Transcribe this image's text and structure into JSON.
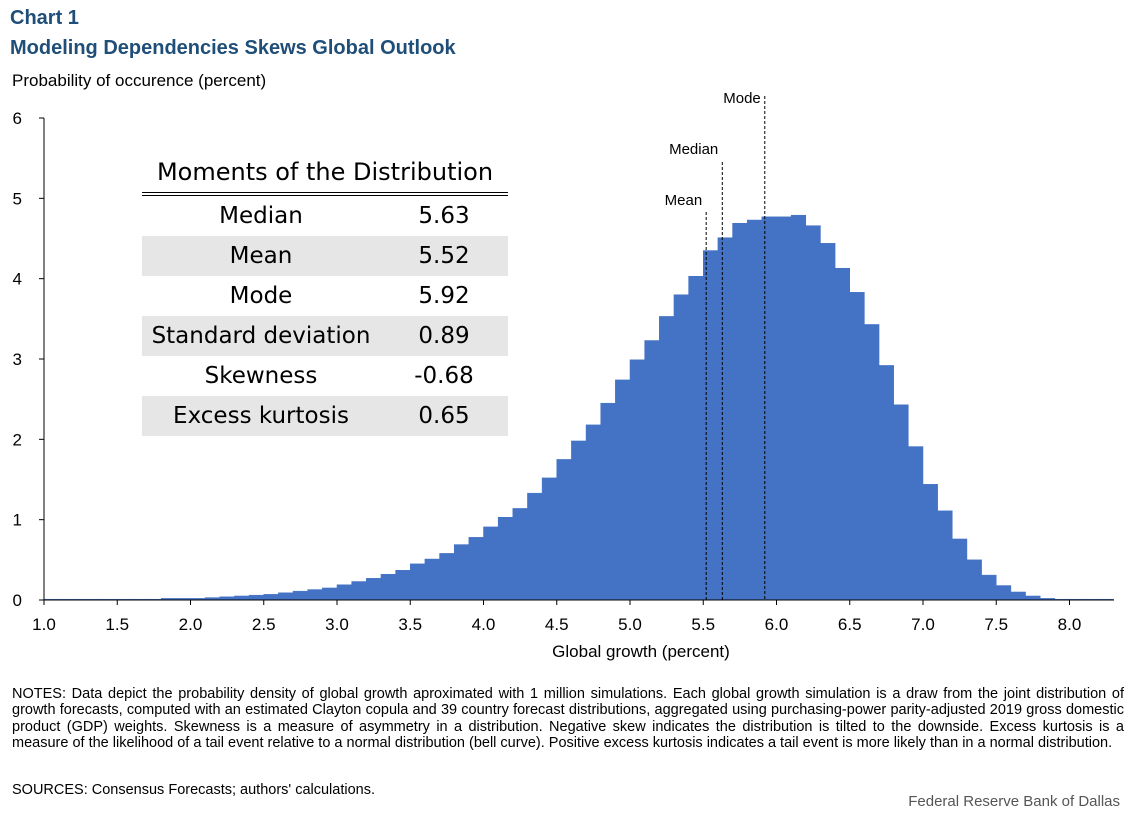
{
  "header": {
    "chart_number": "Chart 1",
    "title": "Modeling Dependencies Skews Global Outlook"
  },
  "footer": {
    "notes": "NOTES: Data depict the probability density of global growth aproximated with 1 million simulations. Each global growth simulation is a draw from the joint distribution of growth forecasts, computed with an estimated Clayton copula and 39 country forecast distributions, aggregated using purchasing-power parity-adjusted 2019 gross domestic product (GDP) weights. Skewness is a measure of asymmetry in a distribution. Negative skew indicates the distribution is tilted to the downside. Excess kurtosis is a measure of the likelihood of a tail event relative to a normal distribution (bell curve). Positive excess kurtosis indicates a tail event is more likely than in a normal distribution.",
    "sources": "SOURCES: Consensus Forecasts; authors' calculations.",
    "credit": "Federal Reserve Bank of Dallas"
  },
  "moments_table": {
    "title": "Moments of the Distribution",
    "rows": [
      {
        "label": "Median",
        "value": "5.63"
      },
      {
        "label": "Mean",
        "value": "5.52"
      },
      {
        "label": "Mode",
        "value": "5.92"
      },
      {
        "label": "Standard deviation",
        "value": "0.89"
      },
      {
        "label": "Skewness",
        "value": "-0.68"
      },
      {
        "label": "Excess kurtosis",
        "value": "0.65"
      }
    ]
  },
  "chart_data": {
    "type": "bar",
    "ylabel": "Probability of occurence (percent)",
    "xlabel": "Global growth (percent)",
    "ylim": [
      0,
      6
    ],
    "xlim": [
      1.0,
      8.3
    ],
    "y_ticks": [
      0,
      1,
      2,
      3,
      4,
      5,
      6
    ],
    "x_ticks": [
      "1.0",
      "1.5",
      "2.0",
      "2.5",
      "3.0",
      "3.5",
      "4.0",
      "4.5",
      "5.0",
      "5.5",
      "6.0",
      "6.5",
      "7.0",
      "7.5",
      "8.0"
    ],
    "bin_width": 0.1,
    "bins": [
      {
        "x": 1.0,
        "y": 0.01
      },
      {
        "x": 1.1,
        "y": 0.01
      },
      {
        "x": 1.2,
        "y": 0.01
      },
      {
        "x": 1.3,
        "y": 0.01
      },
      {
        "x": 1.4,
        "y": 0.01
      },
      {
        "x": 1.5,
        "y": 0.01
      },
      {
        "x": 1.6,
        "y": 0.01
      },
      {
        "x": 1.7,
        "y": 0.01
      },
      {
        "x": 1.8,
        "y": 0.02
      },
      {
        "x": 1.9,
        "y": 0.02
      },
      {
        "x": 2.0,
        "y": 0.02
      },
      {
        "x": 2.1,
        "y": 0.03
      },
      {
        "x": 2.2,
        "y": 0.04
      },
      {
        "x": 2.3,
        "y": 0.05
      },
      {
        "x": 2.4,
        "y": 0.06
      },
      {
        "x": 2.5,
        "y": 0.07
      },
      {
        "x": 2.6,
        "y": 0.09
      },
      {
        "x": 2.7,
        "y": 0.11
      },
      {
        "x": 2.8,
        "y": 0.13
      },
      {
        "x": 2.9,
        "y": 0.15
      },
      {
        "x": 3.0,
        "y": 0.19
      },
      {
        "x": 3.1,
        "y": 0.23
      },
      {
        "x": 3.2,
        "y": 0.27
      },
      {
        "x": 3.3,
        "y": 0.32
      },
      {
        "x": 3.4,
        "y": 0.37
      },
      {
        "x": 3.5,
        "y": 0.45
      },
      {
        "x": 3.6,
        "y": 0.51
      },
      {
        "x": 3.7,
        "y": 0.58
      },
      {
        "x": 3.8,
        "y": 0.69
      },
      {
        "x": 3.9,
        "y": 0.78
      },
      {
        "x": 4.0,
        "y": 0.91
      },
      {
        "x": 4.1,
        "y": 1.03
      },
      {
        "x": 4.2,
        "y": 1.14
      },
      {
        "x": 4.3,
        "y": 1.33
      },
      {
        "x": 4.4,
        "y": 1.52
      },
      {
        "x": 4.5,
        "y": 1.75
      },
      {
        "x": 4.6,
        "y": 1.98
      },
      {
        "x": 4.7,
        "y": 2.18
      },
      {
        "x": 4.8,
        "y": 2.45
      },
      {
        "x": 4.9,
        "y": 2.74
      },
      {
        "x": 5.0,
        "y": 2.99
      },
      {
        "x": 5.1,
        "y": 3.23
      },
      {
        "x": 5.2,
        "y": 3.53
      },
      {
        "x": 5.3,
        "y": 3.8
      },
      {
        "x": 5.4,
        "y": 4.03
      },
      {
        "x": 5.5,
        "y": 4.35
      },
      {
        "x": 5.6,
        "y": 4.51
      },
      {
        "x": 5.7,
        "y": 4.69
      },
      {
        "x": 5.8,
        "y": 4.73
      },
      {
        "x": 5.9,
        "y": 4.77
      },
      {
        "x": 6.0,
        "y": 4.77
      },
      {
        "x": 6.1,
        "y": 4.79
      },
      {
        "x": 6.2,
        "y": 4.66
      },
      {
        "x": 6.3,
        "y": 4.44
      },
      {
        "x": 6.4,
        "y": 4.13
      },
      {
        "x": 6.5,
        "y": 3.83
      },
      {
        "x": 6.6,
        "y": 3.43
      },
      {
        "x": 6.7,
        "y": 2.92
      },
      {
        "x": 6.8,
        "y": 2.43
      },
      {
        "x": 6.9,
        "y": 1.91
      },
      {
        "x": 7.0,
        "y": 1.44
      },
      {
        "x": 7.1,
        "y": 1.11
      },
      {
        "x": 7.2,
        "y": 0.76
      },
      {
        "x": 7.3,
        "y": 0.5
      },
      {
        "x": 7.4,
        "y": 0.31
      },
      {
        "x": 7.5,
        "y": 0.18
      },
      {
        "x": 7.6,
        "y": 0.1
      },
      {
        "x": 7.7,
        "y": 0.05
      },
      {
        "x": 7.8,
        "y": 0.02
      },
      {
        "x": 7.9,
        "y": 0.01
      },
      {
        "x": 8.0,
        "y": 0.01
      },
      {
        "x": 8.1,
        "y": 0.01
      },
      {
        "x": 8.2,
        "y": 0.01
      }
    ],
    "annotations": [
      {
        "label": "Mean",
        "x": 5.52
      },
      {
        "label": "Median",
        "x": 5.63
      },
      {
        "label": "Mode",
        "x": 5.92
      }
    ],
    "bar_color": "#4472c4",
    "grid": false
  }
}
